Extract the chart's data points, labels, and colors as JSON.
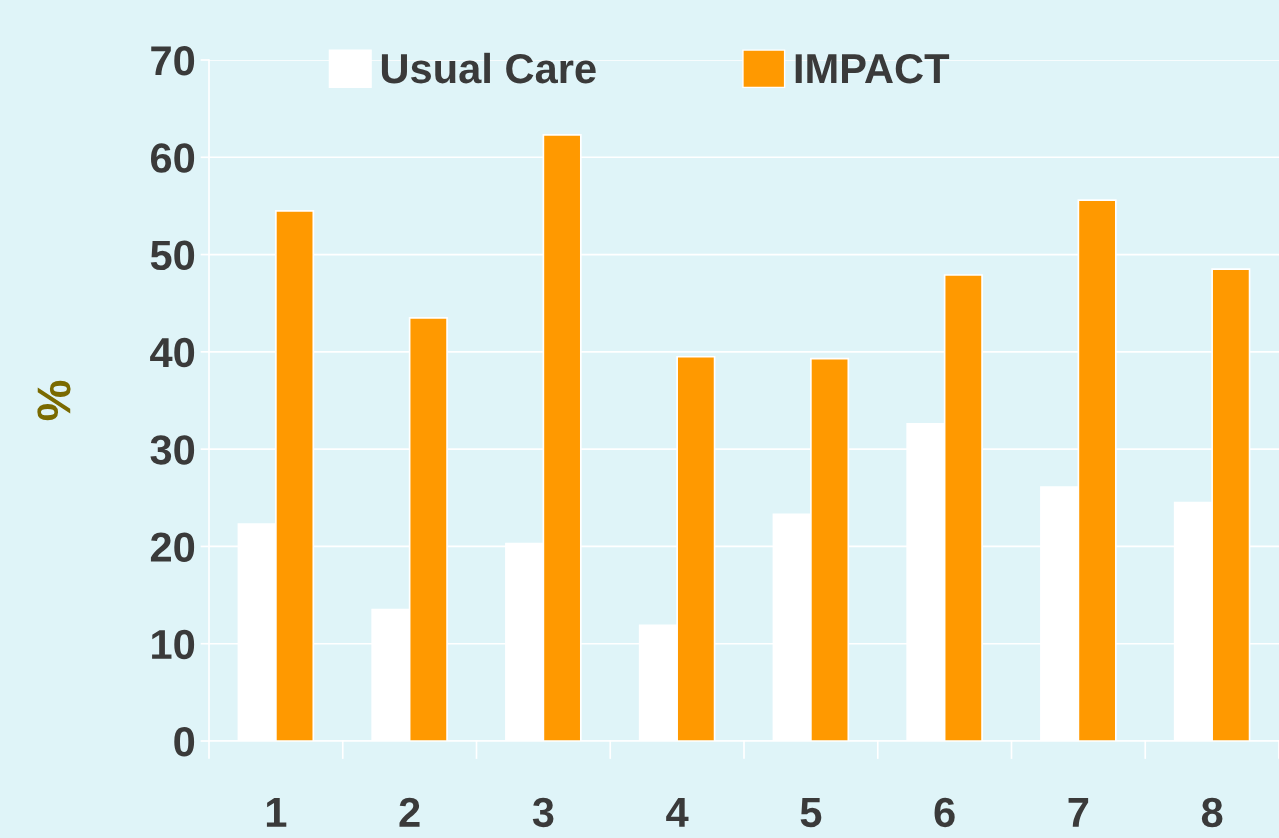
{
  "chart_data": {
    "type": "bar",
    "ylabel": "%",
    "categories": [
      "1",
      "2",
      "3",
      "4",
      "5",
      "6",
      "7",
      "8"
    ],
    "series": [
      {
        "name": "Usual Care",
        "color": "#ffffff",
        "values": [
          22.3,
          13.5,
          20.3,
          11.9,
          23.3,
          32.6,
          26.1,
          24.5
        ]
      },
      {
        "name": "IMPACT",
        "color": "#ff9900",
        "values": [
          54.5,
          43.5,
          62.3,
          39.5,
          39.3,
          47.9,
          55.6,
          48.5
        ]
      }
    ],
    "ylim": [
      0,
      70
    ],
    "yticks": [
      0,
      10,
      20,
      30,
      40,
      50,
      60,
      70
    ],
    "grid": "y",
    "legend": "top"
  }
}
